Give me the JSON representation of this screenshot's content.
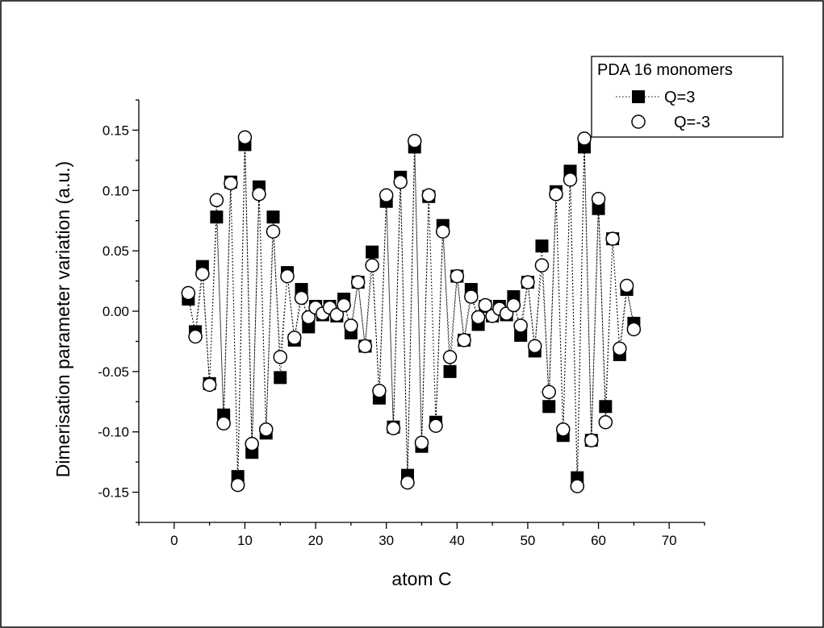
{
  "chart_data": {
    "type": "scatter",
    "title": "",
    "xlabel": "atom C",
    "ylabel": "Dimerisation parameter variation (a.u.)",
    "xlim": [
      -5,
      75
    ],
    "ylim": [
      -0.175,
      0.175
    ],
    "x_ticks": [
      0,
      10,
      20,
      30,
      40,
      50,
      60,
      70
    ],
    "y_ticks": [
      -0.15,
      -0.1,
      -0.05,
      0.0,
      0.05,
      0.1,
      0.15
    ],
    "x_tick_labels": [
      "0",
      "10",
      "20",
      "30",
      "40",
      "50",
      "60",
      "70"
    ],
    "y_tick_labels": [
      "-0.15",
      "-0.10",
      "-0.05",
      "0.00",
      "0.05",
      "0.10",
      "0.15"
    ],
    "grid": false,
    "legend": {
      "title": "PDA 16 monomers",
      "placement": "top-right"
    },
    "series": [
      {
        "name": "Q=3",
        "marker": "filled-square",
        "line": "dotted",
        "color": "#000000",
        "x": [
          2,
          3,
          4,
          5,
          6,
          7,
          8,
          9,
          10,
          11,
          12,
          13,
          14,
          15,
          16,
          17,
          18,
          19,
          20,
          21,
          22,
          23,
          24,
          25,
          26,
          27,
          28,
          29,
          30,
          31,
          32,
          33,
          34,
          35,
          36,
          37,
          38,
          39,
          40,
          41,
          42,
          43,
          44,
          45,
          46,
          47,
          48,
          49,
          50,
          51,
          52,
          53,
          54,
          55,
          56,
          57,
          58,
          59,
          60,
          61,
          62,
          63,
          64,
          65
        ],
        "y": [
          0.01,
          -0.017,
          0.037,
          -0.06,
          0.078,
          -0.086,
          0.107,
          -0.137,
          0.138,
          -0.117,
          0.103,
          -0.101,
          0.078,
          -0.055,
          0.032,
          -0.024,
          0.018,
          -0.013,
          0.004,
          -0.003,
          0.004,
          -0.004,
          0.01,
          -0.018,
          0.024,
          -0.029,
          0.049,
          -0.072,
          0.091,
          -0.096,
          0.111,
          -0.136,
          0.136,
          -0.112,
          0.095,
          -0.092,
          0.071,
          -0.05,
          0.029,
          -0.024,
          0.018,
          -0.011,
          0.004,
          -0.004,
          0.004,
          -0.003,
          0.012,
          -0.02,
          0.024,
          -0.033,
          0.054,
          -0.079,
          0.099,
          -0.103,
          0.116,
          -0.138,
          0.136,
          -0.107,
          0.085,
          -0.079,
          0.06,
          -0.036,
          0.018,
          -0.01
        ]
      },
      {
        "name": "Q=-3",
        "marker": "open-circle",
        "line": "dotted",
        "color": "#000000",
        "x": [
          2,
          3,
          4,
          5,
          6,
          7,
          8,
          9,
          10,
          11,
          12,
          13,
          14,
          15,
          16,
          17,
          18,
          19,
          20,
          21,
          22,
          23,
          24,
          25,
          26,
          27,
          28,
          29,
          30,
          31,
          32,
          33,
          34,
          35,
          36,
          37,
          38,
          39,
          40,
          41,
          42,
          43,
          44,
          45,
          46,
          47,
          48,
          49,
          50,
          51,
          52,
          53,
          54,
          55,
          56,
          57,
          58,
          59,
          60,
          61,
          62,
          63,
          64,
          65
        ],
        "y": [
          0.015,
          -0.021,
          0.031,
          -0.061,
          0.092,
          -0.093,
          0.106,
          -0.144,
          0.144,
          -0.11,
          0.097,
          -0.098,
          0.066,
          -0.038,
          0.029,
          -0.022,
          0.011,
          -0.005,
          0.003,
          -0.002,
          0.003,
          -0.003,
          0.005,
          -0.012,
          0.024,
          -0.029,
          0.038,
          -0.066,
          0.096,
          -0.097,
          0.107,
          -0.142,
          0.141,
          -0.109,
          0.096,
          -0.095,
          0.066,
          -0.038,
          0.029,
          -0.024,
          0.012,
          -0.005,
          0.005,
          -0.004,
          0.002,
          -0.002,
          0.005,
          -0.012,
          0.024,
          -0.029,
          0.038,
          -0.067,
          0.097,
          -0.098,
          0.109,
          -0.145,
          0.143,
          -0.107,
          0.093,
          -0.092,
          0.06,
          -0.031,
          0.021,
          -0.015
        ]
      }
    ]
  }
}
